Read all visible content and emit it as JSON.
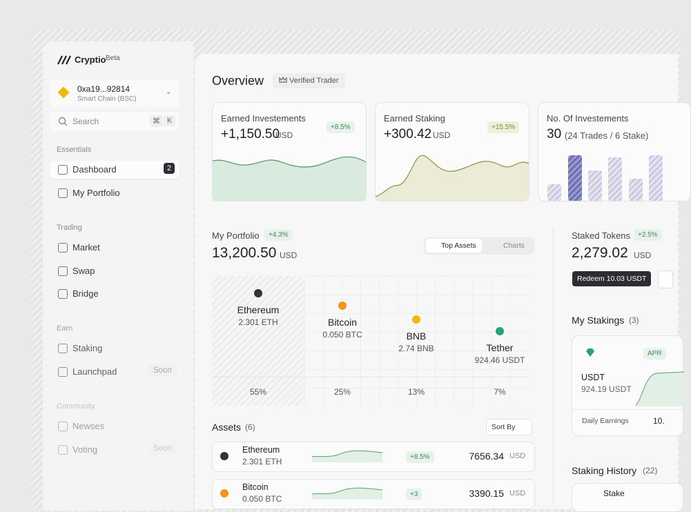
{
  "sidebar": {
    "brand": "Cryptio",
    "brand_tag": "Beta",
    "wallet": {
      "address": "0xa19...92814",
      "network": "Smart Chain (BSC)"
    },
    "search": {
      "placeholder": "Search",
      "shortcut": [
        "⌘",
        "K"
      ]
    },
    "sections": [
      {
        "title": "Essentials",
        "items": [
          {
            "label": "Dashboard",
            "badge": "2"
          },
          {
            "label": "My Portfolio"
          }
        ]
      },
      {
        "title": "Trading",
        "items": [
          {
            "label": "Market"
          },
          {
            "label": "Swap"
          },
          {
            "label": "Bridge"
          }
        ]
      },
      {
        "title": "Earn",
        "items": [
          {
            "label": "Staking"
          },
          {
            "label": "Launchpad",
            "badge": "Soon"
          }
        ]
      },
      {
        "title": "Community",
        "items": [
          {
            "label": "Newses"
          },
          {
            "label": "Voting",
            "badge": "Soon"
          }
        ]
      }
    ]
  },
  "header": {
    "title": "Overview",
    "badge": "Verified Trader"
  },
  "stats": [
    {
      "label": "Earned Investements",
      "value": "+1,150.50",
      "unit": "USD",
      "change": "+8.5%"
    },
    {
      "label": "Earned Staking",
      "value": "+300.42",
      "unit": "USD",
      "change": "+15.5%"
    },
    {
      "label": "No. Of Investements",
      "value": "30",
      "detail": "(24 Trades / 6 Stake)"
    }
  ],
  "portfolio": {
    "title": "My Portfolio",
    "change": "+4.3%",
    "value": "13,200.50",
    "unit": "USD",
    "tabs": [
      "Top Assets",
      "Charts"
    ],
    "assets": [
      {
        "name": "Ethereum",
        "amount": "2.301 ETH",
        "share": "55%"
      },
      {
        "name": "Bitcoin",
        "amount": "0.050 BTC",
        "share": "25%"
      },
      {
        "name": "BNB",
        "amount": "2.74 BNB",
        "share": "13%"
      },
      {
        "name": "Tether",
        "amount": "924.46 USDT",
        "share": "7%"
      }
    ]
  },
  "assets": {
    "title": "Assets",
    "count": "(6)",
    "sort": "Sort By",
    "rows": [
      {
        "name": "Ethereum",
        "amount": "2.301 ETH",
        "change": "+8.5%",
        "value": "7656.34",
        "unit": "USD"
      },
      {
        "name": "Bitcoin",
        "amount": "0.050 BTC",
        "change": "+3",
        "value": "3390.15",
        "unit": "USD"
      }
    ]
  },
  "staking": {
    "title": "Staked Tokens",
    "change": "+2.5%",
    "value": "2,279.02",
    "unit": "USD",
    "action": "Redeem 10.03 USDT",
    "my_stakings": {
      "title": "My Stakings",
      "count": "(3)",
      "card": {
        "badge": "APR",
        "token": "USDT",
        "amount": "924.19 USDT",
        "earnings_label": "Daily Earnings",
        "earnings": "10."
      }
    },
    "history": {
      "title": "Staking History",
      "count": "(22)",
      "first_row": "Stake"
    }
  }
}
